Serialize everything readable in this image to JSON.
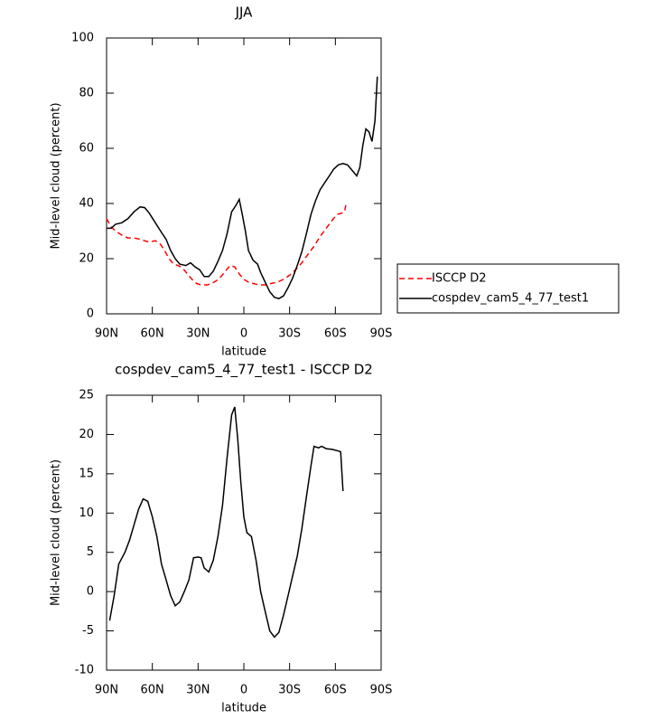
{
  "chart_data": [
    {
      "type": "line",
      "title": "JJA",
      "x_label": "latitude",
      "y_label": "Mid-level cloud (percent)",
      "xlim": [
        90,
        -90
      ],
      "xticks": [
        {
          "value": 90,
          "label": "90N"
        },
        {
          "value": 60,
          "label": "60N"
        },
        {
          "value": 30,
          "label": "30N"
        },
        0,
        {
          "value": -30,
          "label": "30S"
        },
        {
          "value": -60,
          "label": "60S"
        },
        {
          "value": -90,
          "label": "90S"
        }
      ],
      "ylim": [
        0,
        100
      ],
      "yticks": [
        0,
        20,
        40,
        60,
        80,
        100
      ],
      "legend": true,
      "series": [
        {
          "name": "ISCCP D2",
          "color": "#ff0000",
          "line_style": "dashed",
          "x": [
            90,
            87,
            84,
            80,
            76,
            72,
            68,
            65,
            62,
            58,
            55,
            52,
            49,
            46,
            43,
            40,
            37,
            34,
            31,
            28,
            24,
            21,
            18,
            15,
            12,
            9,
            6,
            3,
            0,
            -3,
            -6,
            -10,
            -14,
            -18,
            -22,
            -26,
            -30,
            -34,
            -38,
            -42,
            -46,
            -50,
            -54,
            -58,
            -61,
            -64,
            -66,
            -67
          ],
          "values": [
            34.5,
            31.5,
            30,
            28.5,
            27.5,
            27.5,
            27,
            26.5,
            26,
            26.5,
            25.5,
            23,
            20,
            18,
            17.5,
            16.5,
            14.5,
            12.5,
            11,
            10.5,
            10.5,
            11,
            12,
            13.5,
            15.5,
            17.5,
            17,
            14.5,
            12.5,
            11.5,
            11,
            10.5,
            10.5,
            11,
            11.5,
            12.5,
            14,
            16,
            18.5,
            21.5,
            24.5,
            28,
            31,
            34,
            36,
            36.5,
            37,
            40
          ]
        },
        {
          "name": "cospdev_cam5_4_77_test1",
          "color": "#000000",
          "line_style": "solid",
          "x": [
            90,
            87,
            84,
            80,
            76,
            72,
            68,
            65,
            62,
            58,
            54,
            51,
            48,
            45,
            42,
            38,
            35,
            32,
            29,
            26,
            23,
            20,
            17,
            14,
            11,
            8,
            5,
            3,
            1,
            -1,
            -3,
            -6,
            -9,
            -11,
            -14,
            -17,
            -20,
            -23,
            -26,
            -29,
            -32,
            -35,
            -38,
            -41,
            -44,
            -47,
            -50,
            -53,
            -56,
            -59,
            -62,
            -65,
            -68,
            -71,
            -74,
            -76,
            -78,
            -80,
            -82,
            -84,
            -86,
            -87.5
          ],
          "values": [
            31,
            31,
            32.5,
            33,
            34.5,
            37,
            38.8,
            38.5,
            36.5,
            33,
            29.5,
            27,
            23,
            20,
            18,
            17.5,
            18.5,
            17,
            16,
            13.5,
            13.5,
            15.5,
            19,
            23,
            29,
            37,
            39.5,
            41.5,
            36,
            30,
            23,
            19.5,
            18,
            15,
            11.5,
            8,
            6,
            5.5,
            6.5,
            9.5,
            13,
            17.5,
            22.5,
            29,
            36,
            41,
            45,
            47.5,
            50,
            52.5,
            54,
            54.5,
            54,
            52,
            50,
            53,
            61,
            67,
            66,
            62.5,
            70,
            86
          ]
        }
      ]
    },
    {
      "type": "line",
      "title": "cospdev_cam5_4_77_test1 - ISCCP D2",
      "x_label": "latitude",
      "y_label": "Mid-level cloud (percent)",
      "xlim": [
        90,
        -90
      ],
      "xticks": [
        {
          "value": 90,
          "label": "90N"
        },
        {
          "value": 60,
          "label": "60N"
        },
        {
          "value": 30,
          "label": "30N"
        },
        0,
        {
          "value": -30,
          "label": "30S"
        },
        {
          "value": -60,
          "label": "60S"
        },
        {
          "value": -90,
          "label": "90S"
        }
      ],
      "ylim": [
        -10,
        25
      ],
      "yticks": [
        -10,
        -5,
        0,
        5,
        10,
        15,
        20,
        25
      ],
      "legend": false,
      "series": [
        {
          "color": "#000000",
          "line_style": "solid",
          "x": [
            88,
            85,
            82,
            78,
            75,
            72,
            69,
            66,
            63,
            60,
            57,
            54,
            51,
            48,
            45,
            42,
            39,
            36,
            33,
            30,
            28,
            26,
            23,
            20,
            17,
            14,
            11,
            8,
            6,
            4,
            2,
            0,
            -2,
            -5,
            -8,
            -11,
            -14,
            -17,
            -20,
            -23,
            -26,
            -29,
            -32,
            -35,
            -38,
            -41,
            -44,
            -46,
            -49,
            -51,
            -54,
            -58,
            -62,
            -63.5,
            -65
          ],
          "values": [
            -3.7,
            -0.5,
            3.5,
            5,
            6.5,
            8.5,
            10.5,
            11.8,
            11.5,
            9.5,
            7,
            3.5,
            1.5,
            -0.5,
            -1.8,
            -1.3,
            0,
            1.5,
            4.3,
            4.4,
            4.3,
            3,
            2.5,
            4,
            7,
            11,
            17,
            22.5,
            23.5,
            19.5,
            14,
            9.5,
            7.5,
            7,
            4,
            0,
            -2.5,
            -5,
            -5.8,
            -5.2,
            -3,
            -0.5,
            2,
            4.5,
            8,
            12,
            16,
            18.5,
            18.3,
            18.5,
            18.2,
            18.1,
            17.9,
            17.8,
            12.8
          ]
        }
      ]
    }
  ]
}
